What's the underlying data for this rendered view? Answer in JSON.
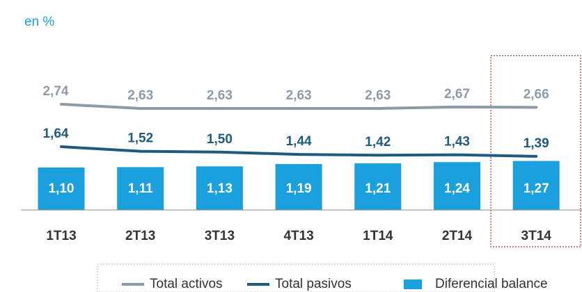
{
  "chart_data": {
    "type": "combo",
    "subtitle": "en %",
    "categories": [
      "1T13",
      "2T13",
      "3T13",
      "4T13",
      "1T14",
      "2T14",
      "3T14"
    ],
    "series": [
      {
        "name": "Total activos",
        "type": "line",
        "color": "#8c9ba6",
        "values": [
          2.74,
          2.63,
          2.63,
          2.63,
          2.63,
          2.67,
          2.66
        ],
        "value_labels": [
          "2,74",
          "2,63",
          "2,63",
          "2,63",
          "2,63",
          "2,67",
          "2,66"
        ]
      },
      {
        "name": "Total pasivos",
        "type": "line",
        "color": "#1e5b7e",
        "values": [
          1.64,
          1.52,
          1.5,
          1.44,
          1.42,
          1.43,
          1.39
        ],
        "value_labels": [
          "1,64",
          "1,52",
          "1,50",
          "1,44",
          "1,42",
          "1,43",
          "1,39"
        ]
      },
      {
        "name": "Diferencial balance",
        "type": "bar",
        "color": "#1aa0dd",
        "values": [
          1.1,
          1.11,
          1.13,
          1.19,
          1.21,
          1.24,
          1.27
        ],
        "value_labels": [
          "1,10",
          "1,11",
          "1,13",
          "1,19",
          "1,21",
          "1,24",
          "1,27"
        ]
      }
    ]
  }
}
